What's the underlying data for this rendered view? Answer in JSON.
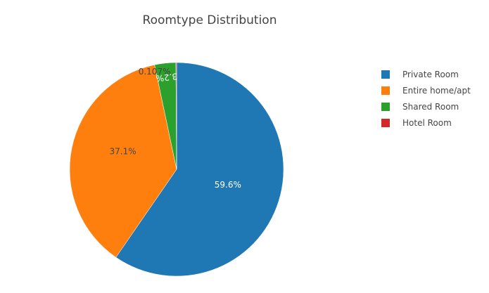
{
  "chart_data": {
    "type": "pie",
    "title": "Roomtype Distribution",
    "categories": [
      "Private Room",
      "Entire home/apt",
      "Shared Room",
      "Hotel Room"
    ],
    "values": [
      59.6,
      37.1,
      3.2,
      0.107
    ],
    "labels": [
      "59.6%",
      "37.1%",
      "3.2%",
      "0.107%"
    ],
    "colors": [
      "#1f77b4",
      "#ff7f0e",
      "#2ca02c",
      "#d62728"
    ],
    "legend": {
      "position": "top-right",
      "entries": [
        "Private Room",
        "Entire home/apt",
        "Shared Room",
        "Hotel Room"
      ]
    },
    "direction": "clockwise",
    "start_angle": "top"
  }
}
